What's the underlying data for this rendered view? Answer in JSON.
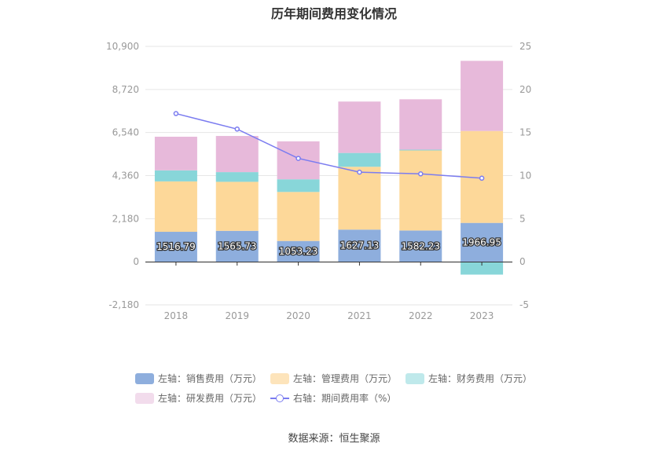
{
  "title": "历年期间费用变化情况",
  "source": "数据来源：恒生聚源",
  "chart_data": {
    "type": "bar",
    "stacked": true,
    "categories": [
      "2018",
      "2019",
      "2020",
      "2021",
      "2022",
      "2023"
    ],
    "left_axis": {
      "ticks": [
        "10,900",
        "8,720",
        "6,540",
        "4,360",
        "2,180",
        "0",
        "-2,180"
      ],
      "ylim": [
        -2180,
        10900
      ]
    },
    "right_axis": {
      "ticks": [
        "25",
        "20",
        "15",
        "10",
        "5",
        "0",
        "-5"
      ],
      "ylim": [
        -5,
        25
      ]
    },
    "series": [
      {
        "name": "左轴：销售费用（万元）",
        "color": "#8eaedd",
        "axis": "left",
        "values": [
          1516.79,
          1565.73,
          1053.23,
          1627.13,
          1582.23,
          1966.95
        ],
        "labels": [
          "1516.79",
          "1565.73",
          "1053.23",
          "1627.13",
          "1582.23",
          "1966.95"
        ]
      },
      {
        "name": "左轴：管理费用（万元）",
        "color": "#fdd899",
        "axis": "left",
        "values": [
          2550,
          2480,
          2480,
          3180,
          4050,
          4650
        ]
      },
      {
        "name": "左轴：财务费用（万元）",
        "color": "#88d6d9",
        "axis": "left",
        "values": [
          560,
          490,
          640,
          700,
          40,
          -650
        ]
      },
      {
        "name": "左轴：研发费用（万元）",
        "color": "#e7b9da",
        "axis": "left",
        "values": [
          1700,
          1830,
          1920,
          2600,
          2550,
          3550
        ]
      },
      {
        "name": "右轴：期间费用率（%）",
        "color": "#7b7cf0",
        "axis": "right",
        "type": "line",
        "values": [
          17.2,
          15.4,
          12.0,
          10.4,
          10.2,
          9.7
        ]
      }
    ]
  }
}
